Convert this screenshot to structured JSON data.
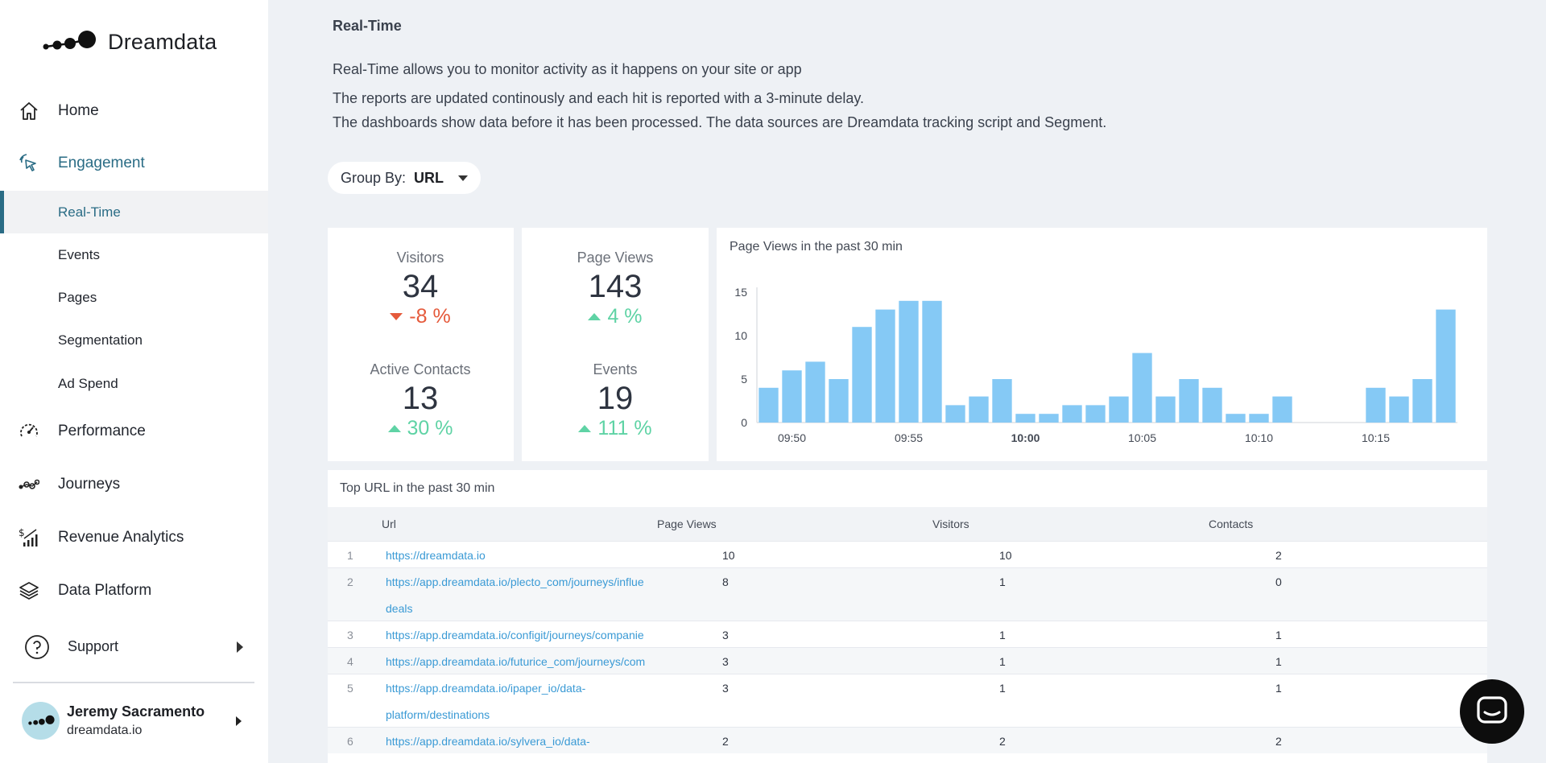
{
  "app": {
    "logo_text": "Dreamdata"
  },
  "sidebar": {
    "items": [
      {
        "label": "Home",
        "icon": "home-icon"
      },
      {
        "label": "Engagement",
        "icon": "cursor-click-icon"
      },
      {
        "label": "Performance",
        "icon": "speedometer-icon"
      },
      {
        "label": "Journeys",
        "icon": "journey-nodes-icon"
      },
      {
        "label": "Revenue Analytics",
        "icon": "revenue-chart-icon"
      },
      {
        "label": "Data Platform",
        "icon": "layers-icon"
      }
    ],
    "sub_items": [
      {
        "label": "Real-Time"
      },
      {
        "label": "Events"
      },
      {
        "label": "Pages"
      },
      {
        "label": "Segmentation"
      },
      {
        "label": "Ad Spend"
      }
    ],
    "support_label": "Support"
  },
  "user": {
    "name": "Jeremy Sacramento",
    "org": "dreamdata.io"
  },
  "page": {
    "title": "Real-Time",
    "desc1": "Real-Time allows you to monitor activity as it happens on your site or app",
    "desc2": "The reports are updated continously and each hit is reported with a 3-minute delay.",
    "desc3": "The dashboards show data before it has been processed. The data sources are Dreamdata tracking script and Segment."
  },
  "group_by": {
    "label": "Group By:",
    "value": "URL"
  },
  "metrics": {
    "visitors": {
      "label": "Visitors",
      "value": "34",
      "change": "-8 %"
    },
    "page_views": {
      "label": "Page Views",
      "value": "143",
      "change": "4 %"
    },
    "active_contacts": {
      "label": "Active Contacts",
      "value": "13",
      "change": "30 %"
    },
    "events": {
      "label": "Events",
      "value": "19",
      "change": "111 %"
    }
  },
  "colors": {
    "accent": "#2a6c85",
    "negative": "#e55a3b",
    "positive": "#5fd3a5",
    "bar": "#85c9f5",
    "link": "#3a9ad5"
  },
  "chart_data": {
    "type": "bar",
    "title": "Page Views in the past 30 min",
    "values": [
      4,
      6,
      7,
      5,
      11,
      13,
      14,
      14,
      2,
      3,
      5,
      1,
      1,
      2,
      2,
      3,
      8,
      3,
      5,
      4,
      1,
      1,
      3,
      0,
      0,
      0,
      4,
      3,
      5,
      13
    ],
    "x_tick_labels": [
      "09:50",
      "09:55",
      "10:00",
      "10:05",
      "10:10",
      "10:15"
    ],
    "y_ticks": [
      0,
      5,
      10,
      15
    ],
    "ylim": [
      0,
      15
    ],
    "xlabel": "",
    "ylabel": "",
    "grid": false
  },
  "table": {
    "title": "Top URL in the past 30 min",
    "columns": [
      "Url",
      "Page Views",
      "Visitors",
      "Contacts"
    ],
    "rows": [
      {
        "idx": "1",
        "url": "https://dreamdata.io",
        "url2": "",
        "page_views": "10",
        "visitors": "10",
        "contacts": "2"
      },
      {
        "idx": "2",
        "url": "https://app.dreamdata.io/plecto_com/journeys/influe",
        "url2": "deals",
        "page_views": "8",
        "visitors": "1",
        "contacts": "0"
      },
      {
        "idx": "3",
        "url": "https://app.dreamdata.io/configit/journeys/companie",
        "url2": "",
        "page_views": "3",
        "visitors": "1",
        "contacts": "1"
      },
      {
        "idx": "4",
        "url": "https://app.dreamdata.io/futurice_com/journeys/com",
        "url2": "",
        "page_views": "3",
        "visitors": "1",
        "contacts": "1"
      },
      {
        "idx": "5",
        "url": "https://app.dreamdata.io/ipaper_io/data-",
        "url2": "platform/destinations",
        "page_views": "3",
        "visitors": "1",
        "contacts": "1"
      },
      {
        "idx": "6",
        "url": "https://app.dreamdata.io/sylvera_io/data-",
        "url2": "",
        "page_views": "2",
        "visitors": "2",
        "contacts": "2"
      }
    ]
  }
}
